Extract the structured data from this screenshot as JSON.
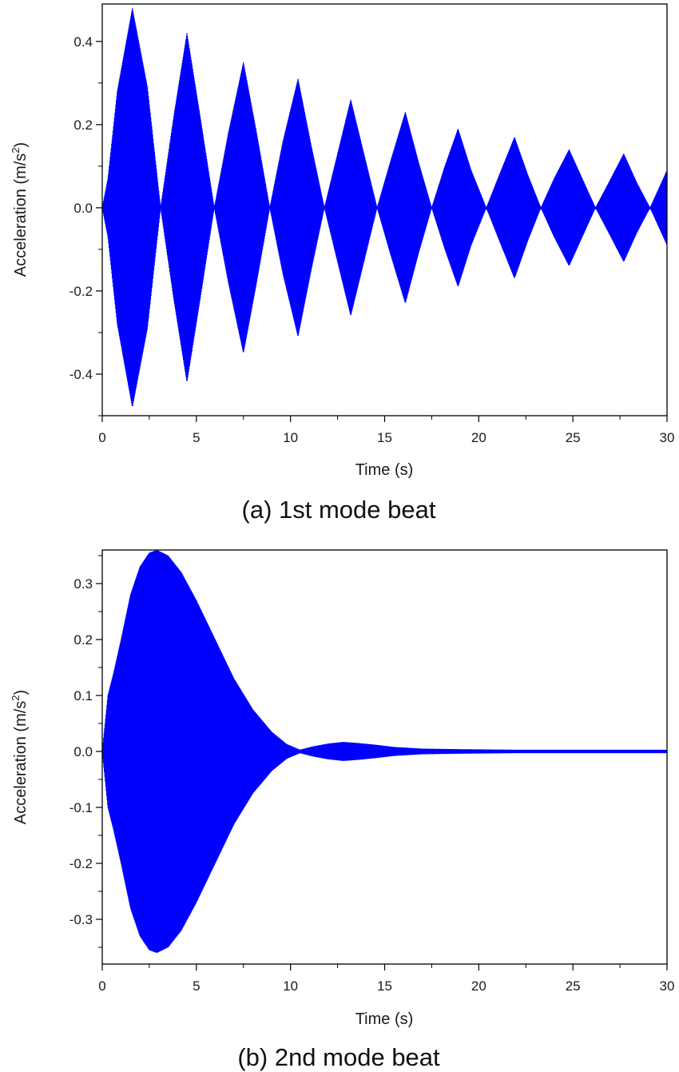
{
  "chart_data": [
    {
      "type": "line",
      "caption": "(a) 1st mode beat",
      "xlabel": "Time (s)",
      "ylabel_base": "Acceleration (m/s",
      "ylabel_sup": "2",
      "ylabel_close": ")",
      "xlim": [
        0,
        30
      ],
      "ylim": [
        -0.5,
        0.49
      ],
      "x_ticks": [
        0,
        5,
        10,
        15,
        20,
        25,
        30
      ],
      "x_tick_labels": [
        "0",
        "5",
        "10",
        "15",
        "20",
        "25",
        "30"
      ],
      "y_ticks": [
        -0.4,
        -0.2,
        0.0,
        0.2,
        0.4
      ],
      "y_tick_labels": [
        "-0.4",
        "-0.2",
        "0.0",
        "0.2",
        "0.4"
      ],
      "grid": false,
      "color": "#0000ff",
      "series": [
        {
          "envelope": {
            "t": [
              0,
              0.3,
              0.8,
              1.6,
              2.4,
              3.1,
              3.8,
              4.5,
              5.2,
              5.95,
              6.7,
              7.5,
              8.2,
              8.9,
              9.6,
              10.4,
              11.1,
              11.8,
              12.5,
              13.2,
              13.9,
              14.6,
              15.3,
              16.1,
              16.8,
              17.5,
              18.2,
              18.9,
              19.6,
              20.4,
              21.1,
              21.9,
              22.6,
              23.3,
              24.0,
              24.8,
              25.5,
              26.2,
              26.9,
              27.7,
              28.4,
              29.1,
              29.8,
              30.0
            ],
            "amp": [
              0,
              0.07,
              0.28,
              0.48,
              0.29,
              0.0,
              0.22,
              0.42,
              0.22,
              0.0,
              0.18,
              0.35,
              0.18,
              0.0,
              0.16,
              0.31,
              0.15,
              0.0,
              0.13,
              0.26,
              0.13,
              0.0,
              0.11,
              0.23,
              0.11,
              0.0,
              0.1,
              0.19,
              0.09,
              0.0,
              0.08,
              0.17,
              0.08,
              0.0,
              0.07,
              0.14,
              0.07,
              0.0,
              0.06,
              0.13,
              0.06,
              0.0,
              0.07,
              0.09
            ]
          }
        }
      ]
    },
    {
      "type": "line",
      "caption": "(b) 2nd mode beat",
      "xlabel": "Time (s)",
      "ylabel_base": "Acceleration (m/s",
      "ylabel_sup": "2",
      "ylabel_close": ")",
      "xlim": [
        0,
        30
      ],
      "ylim": [
        -0.38,
        0.36
      ],
      "x_ticks": [
        0,
        5,
        10,
        15,
        20,
        25,
        30
      ],
      "x_tick_labels": [
        "0",
        "5",
        "10",
        "15",
        "20",
        "25",
        "30"
      ],
      "y_ticks": [
        -0.3,
        -0.2,
        -0.1,
        0.0,
        0.1,
        0.2,
        0.3
      ],
      "y_tick_labels": [
        "-0.3",
        "-0.2",
        "-0.1",
        "0.0",
        "0.1",
        "0.2",
        "0.3"
      ],
      "grid": false,
      "color": "#0000ff",
      "series": [
        {
          "envelope": {
            "t": [
              0,
              0.3,
              0.6,
              1.0,
              1.5,
              2.0,
              2.5,
              2.9,
              3.5,
              4.2,
              5.0,
              6.0,
              7.0,
              8.0,
              9.0,
              9.8,
              10.5,
              11.2,
              12.0,
              12.8,
              13.6,
              14.5,
              15.5,
              17.0,
              19.0,
              22.0,
              26.0,
              30.0
            ],
            "amp": [
              0,
              0.1,
              0.14,
              0.2,
              0.28,
              0.33,
              0.355,
              0.36,
              0.35,
              0.32,
              0.27,
              0.2,
              0.13,
              0.075,
              0.035,
              0.013,
              0.003,
              0.009,
              0.014,
              0.017,
              0.015,
              0.012,
              0.008,
              0.005,
              0.004,
              0.003,
              0.003,
              0.003
            ]
          }
        }
      ]
    }
  ]
}
